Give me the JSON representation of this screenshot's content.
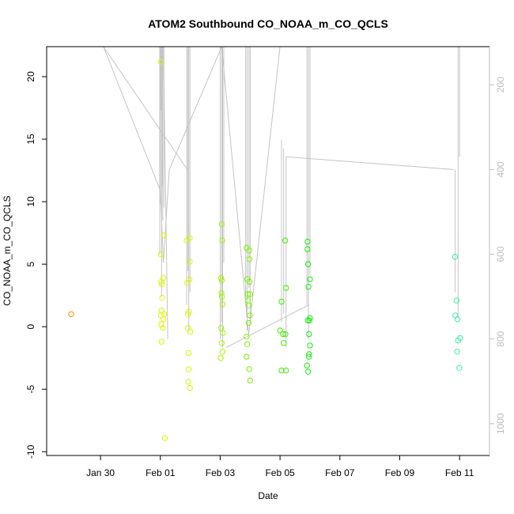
{
  "chart_data": {
    "type": "scatter",
    "title": "ATOM2 Southbound CO_NOAA_m_CO_QCLS",
    "xlabel": "Date",
    "ylabel": "CO_NOAA_m_CO_QCLS",
    "x_ticks": [
      "Jan 30",
      "Feb 01",
      "Feb 03",
      "Feb 05",
      "Feb 07",
      "Feb 09",
      "Feb 11"
    ],
    "x_tick_days": [
      30,
      32,
      34,
      36,
      38,
      40,
      42
    ],
    "y_ticks": [
      -10,
      -5,
      0,
      5,
      10,
      15,
      20
    ],
    "right_ticks": [
      200,
      400,
      600,
      800,
      1000
    ],
    "xlim": [
      28.2,
      43.0
    ],
    "ylim": [
      -10.3,
      22.4
    ],
    "right_ylim": [
      1075,
      110
    ],
    "grid": false,
    "right_axis_color": "#bdbdbd",
    "line_color": "#c4c4c4",
    "points": [
      {
        "x": 29.02,
        "y": 1.0,
        "color": "#ff8c00"
      },
      {
        "x": 32.02,
        "y": 21.2,
        "color": "#e0f400"
      },
      {
        "x": 32.02,
        "y": 5.8,
        "color": "#e0f400"
      },
      {
        "x": 32.03,
        "y": 3.6,
        "color": "#e0f400"
      },
      {
        "x": 32.05,
        "y": 3.4,
        "color": "#e0f400"
      },
      {
        "x": 32.06,
        "y": 2.3,
        "color": "#e0f400"
      },
      {
        "x": 32.04,
        "y": 1.3,
        "color": "#e0f400"
      },
      {
        "x": 32.02,
        "y": 0.9,
        "color": "#e0f400"
      },
      {
        "x": 32.03,
        "y": 0.2,
        "color": "#e0f400"
      },
      {
        "x": 32.08,
        "y": -0.1,
        "color": "#e0f400"
      },
      {
        "x": 32.04,
        "y": -1.2,
        "color": "#e0f400"
      },
      {
        "x": 32.12,
        "y": 7.3,
        "color": "#e0f400"
      },
      {
        "x": 32.1,
        "y": 3.9,
        "color": "#e0f400"
      },
      {
        "x": 32.13,
        "y": 1.0,
        "color": "#e0f400"
      },
      {
        "x": 32.15,
        "y": -8.9,
        "color": "#e0f400"
      },
      {
        "x": 32.1,
        "y": 0.6,
        "color": "#e0f400"
      },
      {
        "x": 32.88,
        "y": 6.9,
        "color": "#d8f600"
      },
      {
        "x": 32.9,
        "y": 3.5,
        "color": "#d8f600"
      },
      {
        "x": 32.92,
        "y": 1.0,
        "color": "#d8f600"
      },
      {
        "x": 32.92,
        "y": -0.1,
        "color": "#d8f600"
      },
      {
        "x": 32.94,
        "y": -2.1,
        "color": "#d8f600"
      },
      {
        "x": 32.95,
        "y": -3.4,
        "color": "#d8f600"
      },
      {
        "x": 32.93,
        "y": -4.4,
        "color": "#d8f600"
      },
      {
        "x": 32.98,
        "y": 7.1,
        "color": "#d8f600"
      },
      {
        "x": 32.98,
        "y": 5.2,
        "color": "#d8f600"
      },
      {
        "x": 32.97,
        "y": 3.8,
        "color": "#d8f600"
      },
      {
        "x": 32.95,
        "y": 1.2,
        "color": "#d8f600"
      },
      {
        "x": 33.0,
        "y": -0.4,
        "color": "#d8f600"
      },
      {
        "x": 32.99,
        "y": -4.9,
        "color": "#d8f600"
      },
      {
        "x": 34.05,
        "y": 8.2,
        "color": "#a6f400"
      },
      {
        "x": 34.07,
        "y": 6.9,
        "color": "#a6f400"
      },
      {
        "x": 34.03,
        "y": 3.9,
        "color": "#a6f400"
      },
      {
        "x": 34.05,
        "y": 3.7,
        "color": "#a6f400"
      },
      {
        "x": 34.04,
        "y": 2.7,
        "color": "#a6f400"
      },
      {
        "x": 34.06,
        "y": 2.4,
        "color": "#a6f400"
      },
      {
        "x": 34.08,
        "y": 1.8,
        "color": "#a6f400"
      },
      {
        "x": 34.03,
        "y": -0.1,
        "color": "#a6f400"
      },
      {
        "x": 34.09,
        "y": -0.5,
        "color": "#a6f400"
      },
      {
        "x": 34.05,
        "y": -1.3,
        "color": "#a6f400"
      },
      {
        "x": 34.08,
        "y": -2.0,
        "color": "#a6f400"
      },
      {
        "x": 34.02,
        "y": -2.5,
        "color": "#a6f400"
      },
      {
        "x": 34.88,
        "y": 6.3,
        "color": "#7cf000"
      },
      {
        "x": 34.97,
        "y": 6.1,
        "color": "#7cf000"
      },
      {
        "x": 34.98,
        "y": 5.4,
        "color": "#7cf000"
      },
      {
        "x": 34.9,
        "y": 3.8,
        "color": "#7cf000"
      },
      {
        "x": 34.98,
        "y": 3.6,
        "color": "#7cf000"
      },
      {
        "x": 34.92,
        "y": 2.6,
        "color": "#7cf000"
      },
      {
        "x": 35.0,
        "y": 2.6,
        "color": "#7cf000"
      },
      {
        "x": 34.93,
        "y": 2.1,
        "color": "#7cf000"
      },
      {
        "x": 34.96,
        "y": 1.7,
        "color": "#7cf000"
      },
      {
        "x": 34.99,
        "y": 0.9,
        "color": "#7cf000"
      },
      {
        "x": 34.95,
        "y": 0.3,
        "color": "#7cf000"
      },
      {
        "x": 34.88,
        "y": -0.8,
        "color": "#7cf000"
      },
      {
        "x": 34.9,
        "y": -1.4,
        "color": "#7cf000"
      },
      {
        "x": 34.88,
        "y": -2.4,
        "color": "#7cf000"
      },
      {
        "x": 34.97,
        "y": -3.4,
        "color": "#7cf000"
      },
      {
        "x": 35.0,
        "y": -4.3,
        "color": "#7cf000"
      },
      {
        "x": 36.17,
        "y": 6.9,
        "color": "#40ee00"
      },
      {
        "x": 36.2,
        "y": 3.1,
        "color": "#40ee00"
      },
      {
        "x": 36.05,
        "y": 2.0,
        "color": "#40ee00"
      },
      {
        "x": 36.0,
        "y": -0.3,
        "color": "#40ee00"
      },
      {
        "x": 36.1,
        "y": -0.6,
        "color": "#40ee00"
      },
      {
        "x": 36.18,
        "y": -0.6,
        "color": "#40ee00"
      },
      {
        "x": 36.12,
        "y": -1.3,
        "color": "#40ee00"
      },
      {
        "x": 36.05,
        "y": -3.5,
        "color": "#40ee00"
      },
      {
        "x": 36.2,
        "y": -3.5,
        "color": "#40ee00"
      },
      {
        "x": 36.92,
        "y": 6.8,
        "color": "#14ec10"
      },
      {
        "x": 36.92,
        "y": 6.2,
        "color": "#14ec10"
      },
      {
        "x": 36.94,
        "y": 5.0,
        "color": "#14ec10"
      },
      {
        "x": 37.0,
        "y": 3.8,
        "color": "#14ec10"
      },
      {
        "x": 36.95,
        "y": 3.2,
        "color": "#14ec10"
      },
      {
        "x": 37.0,
        "y": 0.7,
        "color": "#14ec10"
      },
      {
        "x": 36.98,
        "y": 0.5,
        "color": "#14ec10"
      },
      {
        "x": 36.93,
        "y": 0.5,
        "color": "#14ec10"
      },
      {
        "x": 36.97,
        "y": -0.6,
        "color": "#14ec10"
      },
      {
        "x": 37.0,
        "y": -1.5,
        "color": "#14ec10"
      },
      {
        "x": 36.97,
        "y": -2.2,
        "color": "#14ec10"
      },
      {
        "x": 36.96,
        "y": -2.4,
        "color": "#14ec10"
      },
      {
        "x": 36.9,
        "y": -3.1,
        "color": "#14ec10"
      },
      {
        "x": 36.94,
        "y": -3.6,
        "color": "#14ec10"
      },
      {
        "x": 41.85,
        "y": 5.6,
        "color": "#3cf0a2"
      },
      {
        "x": 41.9,
        "y": 2.1,
        "color": "#3cf0a2"
      },
      {
        "x": 41.86,
        "y": 0.9,
        "color": "#3cf0a2"
      },
      {
        "x": 41.93,
        "y": 0.6,
        "color": "#3cf0a2"
      },
      {
        "x": 41.95,
        "y": -1.1,
        "color": "#3cf0a2"
      },
      {
        "x": 42.02,
        "y": -0.9,
        "color": "#3cf0a2"
      },
      {
        "x": 41.92,
        "y": -2.0,
        "color": "#3cf0a2"
      },
      {
        "x": 41.99,
        "y": -3.3,
        "color": "#3cf0a2"
      }
    ],
    "track_lines": [
      {
        "x": [
          30.1,
          32.9
        ],
        "r": [
          110,
          400
        ]
      },
      {
        "x": [
          30.1,
          32.0,
          32.1,
          32.3,
          34.05,
          34.95,
          36.0
        ],
        "r": [
          110,
          450,
          620,
          400,
          110,
          790,
          110
        ]
      },
      {
        "x": [
          32.1,
          32.25
        ],
        "r": [
          110,
          800
        ]
      },
      {
        "x": [
          31.98,
          31.98
        ],
        "r": [
          110,
          600
        ]
      },
      {
        "x": [
          32.0,
          32.0
        ],
        "r": [
          110,
          480
        ]
      },
      {
        "x": [
          32.02,
          32.02
        ],
        "r": [
          110,
          260
        ]
      },
      {
        "x": [
          32.04,
          32.04
        ],
        "r": [
          110,
          700
        ]
      },
      {
        "x": [
          32.06,
          32.06
        ],
        "r": [
          110,
          440
        ]
      },
      {
        "x": [
          32.08,
          32.08
        ],
        "r": [
          110,
          520
        ]
      },
      {
        "x": [
          32.12,
          32.12
        ],
        "r": [
          110,
          490
        ]
      },
      {
        "x": [
          32.88,
          32.88
        ],
        "r": [
          110,
          720
        ]
      },
      {
        "x": [
          32.92,
          32.92
        ],
        "r": [
          110,
          640
        ]
      },
      {
        "x": [
          32.95,
          32.95
        ],
        "r": [
          110,
          780
        ]
      },
      {
        "x": [
          32.99,
          32.99
        ],
        "r": [
          110,
          690
        ]
      },
      {
        "x": [
          34.0,
          34.0
        ],
        "r": [
          110,
          800
        ]
      },
      {
        "x": [
          34.05,
          34.05
        ],
        "r": [
          110,
          760
        ]
      },
      {
        "x": [
          34.08,
          34.08
        ],
        "r": [
          110,
          820
        ]
      },
      {
        "x": [
          34.12,
          34.12
        ],
        "r": [
          110,
          620
        ]
      },
      {
        "x": [
          34.85,
          34.85
        ],
        "r": [
          110,
          720
        ]
      },
      {
        "x": [
          34.9,
          34.9
        ],
        "r": [
          110,
          780
        ]
      },
      {
        "x": [
          34.96,
          34.96
        ],
        "r": [
          110,
          680
        ]
      },
      {
        "x": [
          35.0,
          35.0
        ],
        "r": [
          110,
          760
        ]
      },
      {
        "x": [
          36.05,
          36.05
        ],
        "r": [
          330,
          760
        ]
      },
      {
        "x": [
          36.12,
          36.12
        ],
        "r": [
          350,
          740
        ]
      },
      {
        "x": [
          36.2,
          36.2
        ],
        "r": [
          370,
          820
        ]
      },
      {
        "x": [
          36.2,
          41.8
        ],
        "r": [
          370,
          400
        ]
      },
      {
        "x": [
          34.2,
          36.95
        ],
        "r": [
          820,
          720
        ]
      },
      {
        "x": [
          36.9,
          36.9
        ],
        "r": [
          110,
          720
        ]
      },
      {
        "x": [
          36.95,
          36.95
        ],
        "r": [
          110,
          800
        ]
      },
      {
        "x": [
          37.0,
          37.0
        ],
        "r": [
          110,
          650
        ]
      },
      {
        "x": [
          41.85,
          41.85
        ],
        "r": [
          400,
          690
        ]
      },
      {
        "x": [
          41.95,
          41.95
        ],
        "r": [
          110,
          750
        ]
      },
      {
        "x": [
          42.0,
          42.0
        ],
        "r": [
          110,
          370
        ]
      }
    ]
  }
}
